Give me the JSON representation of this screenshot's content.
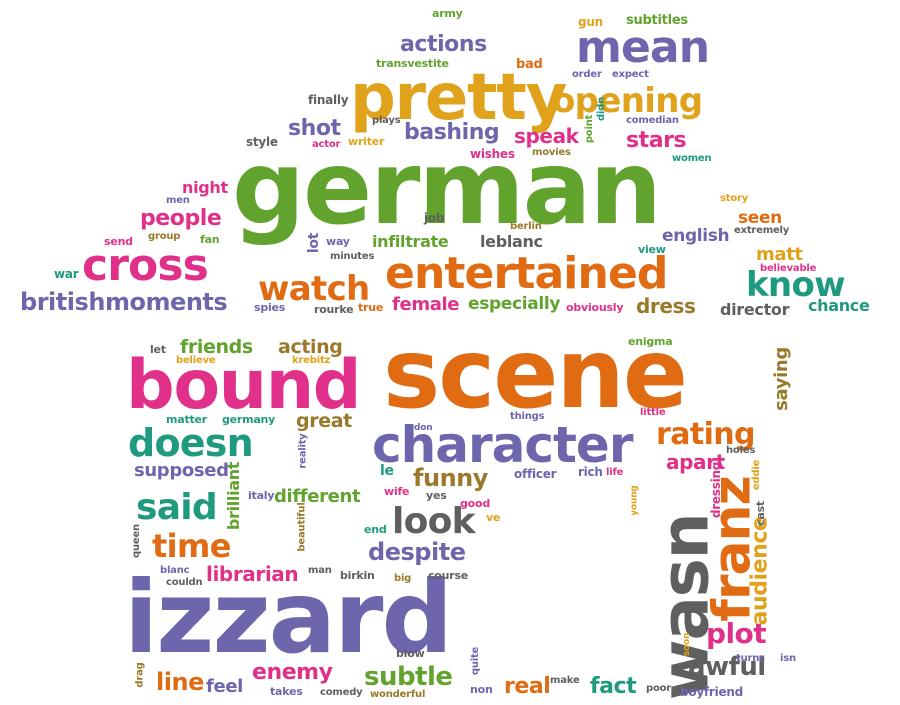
{
  "palette": {
    "green": "#62a32e",
    "orange": "#e06b12",
    "pink": "#e0308a",
    "purple": "#6e66ad",
    "gold": "#e0a21b",
    "gray": "#5f5f5f",
    "teal": "#1f9a7f",
    "olive": "#9a7a2a"
  },
  "words": [
    {
      "text": "german",
      "color": "green"
    },
    {
      "text": "scene",
      "color": "orange"
    },
    {
      "text": "izzard",
      "color": "purple"
    },
    {
      "text": "bound",
      "color": "pink"
    },
    {
      "text": "pretty",
      "color": "gold"
    },
    {
      "text": "character",
      "color": "purple"
    },
    {
      "text": "entertained",
      "color": "orange"
    },
    {
      "text": "wasn",
      "color": "gray"
    },
    {
      "text": "franz",
      "color": "orange"
    },
    {
      "text": "cross",
      "color": "pink"
    },
    {
      "text": "watch",
      "color": "orange"
    },
    {
      "text": "mean",
      "color": "purple"
    },
    {
      "text": "opening",
      "color": "gold"
    },
    {
      "text": "know",
      "color": "teal"
    },
    {
      "text": "doesn",
      "color": "teal"
    },
    {
      "text": "look",
      "color": "gray"
    },
    {
      "text": "said",
      "color": "teal"
    },
    {
      "text": "time",
      "color": "orange"
    },
    {
      "text": "rating",
      "color": "orange"
    },
    {
      "text": "britishmoments",
      "color": "purple"
    },
    {
      "text": "actions",
      "color": "purple"
    },
    {
      "text": "shot",
      "color": "purple"
    },
    {
      "text": "bashing",
      "color": "purple"
    },
    {
      "text": "speak",
      "color": "pink"
    },
    {
      "text": "stars",
      "color": "pink"
    },
    {
      "text": "people",
      "color": "pink"
    },
    {
      "text": "funny",
      "color": "olive"
    },
    {
      "text": "despite",
      "color": "purple"
    },
    {
      "text": "plot",
      "color": "pink"
    },
    {
      "text": "awful",
      "color": "gray"
    },
    {
      "text": "audience",
      "color": "gold"
    },
    {
      "text": "subtle",
      "color": "green"
    },
    {
      "text": "enemy",
      "color": "pink"
    },
    {
      "text": "line",
      "color": "orange"
    },
    {
      "text": "real",
      "color": "orange"
    },
    {
      "text": "fact",
      "color": "teal"
    },
    {
      "text": "librarian",
      "color": "pink"
    },
    {
      "text": "friends",
      "color": "green"
    },
    {
      "text": "acting",
      "color": "olive"
    },
    {
      "text": "great",
      "color": "olive"
    },
    {
      "text": "dress",
      "color": "olive"
    },
    {
      "text": "female",
      "color": "pink"
    },
    {
      "text": "especially",
      "color": "green"
    },
    {
      "text": "different",
      "color": "green"
    },
    {
      "text": "supposed",
      "color": "purple"
    },
    {
      "text": "apart",
      "color": "pink"
    },
    {
      "text": "saying",
      "color": "olive"
    },
    {
      "text": "director",
      "color": "gray"
    },
    {
      "text": "chance",
      "color": "teal"
    },
    {
      "text": "english",
      "color": "purple"
    },
    {
      "text": "matt",
      "color": "gold"
    },
    {
      "text": "seen",
      "color": "orange"
    },
    {
      "text": "infiltrate",
      "color": "green"
    },
    {
      "text": "leblanc",
      "color": "gray"
    },
    {
      "text": "night",
      "color": "pink"
    },
    {
      "text": "feel",
      "color": "purple"
    },
    {
      "text": "brilliant",
      "color": "green"
    },
    {
      "text": "army",
      "color": "green"
    },
    {
      "text": "gun",
      "color": "gold"
    },
    {
      "text": "subtitles",
      "color": "green"
    },
    {
      "text": "transvestite",
      "color": "green"
    },
    {
      "text": "bad",
      "color": "orange"
    },
    {
      "text": "order",
      "color": "purple"
    },
    {
      "text": "expect",
      "color": "purple"
    },
    {
      "text": "finally",
      "color": "gray"
    },
    {
      "text": "plays",
      "color": "gray"
    },
    {
      "text": "writer",
      "color": "gold"
    },
    {
      "text": "actor",
      "color": "pink"
    },
    {
      "text": "style",
      "color": "gray"
    },
    {
      "text": "wishes",
      "color": "pink"
    },
    {
      "text": "movies",
      "color": "olive"
    },
    {
      "text": "didn",
      "color": "teal"
    },
    {
      "text": "point",
      "color": "green"
    },
    {
      "text": "comedian",
      "color": "purple"
    },
    {
      "text": "women",
      "color": "teal"
    },
    {
      "text": "extremely",
      "color": "gray"
    },
    {
      "text": "story",
      "color": "gold"
    },
    {
      "text": "men",
      "color": "purple"
    },
    {
      "text": "job",
      "color": "gray"
    },
    {
      "text": "berlin",
      "color": "olive"
    },
    {
      "text": "fan",
      "color": "green"
    },
    {
      "text": "send",
      "color": "pink"
    },
    {
      "text": "group",
      "color": "olive"
    },
    {
      "text": "lot",
      "color": "purple"
    },
    {
      "text": "way",
      "color": "purple"
    },
    {
      "text": "minutes",
      "color": "gray"
    },
    {
      "text": "view",
      "color": "teal"
    },
    {
      "text": "believable",
      "color": "pink"
    },
    {
      "text": "war",
      "color": "teal"
    },
    {
      "text": "spies",
      "color": "purple"
    },
    {
      "text": "rourke",
      "color": "gray"
    },
    {
      "text": "true",
      "color": "orange"
    },
    {
      "text": "obviously",
      "color": "pink"
    },
    {
      "text": "enigma",
      "color": "green"
    },
    {
      "text": "let",
      "color": "gray"
    },
    {
      "text": "believe",
      "color": "gold"
    },
    {
      "text": "krebitz",
      "color": "gold"
    },
    {
      "text": "matter",
      "color": "teal"
    },
    {
      "text": "germany",
      "color": "teal"
    },
    {
      "text": "reality",
      "color": "purple"
    },
    {
      "text": "don",
      "color": "purple"
    },
    {
      "text": "things",
      "color": "purple"
    },
    {
      "text": "little",
      "color": "pink"
    },
    {
      "text": "holes",
      "color": "gray"
    },
    {
      "text": "eddie",
      "color": "gold"
    },
    {
      "text": "le",
      "color": "teal"
    },
    {
      "text": "officer",
      "color": "purple"
    },
    {
      "text": "rich",
      "color": "purple"
    },
    {
      "text": "life",
      "color": "pink"
    },
    {
      "text": "wife",
      "color": "pink"
    },
    {
      "text": "italy",
      "color": "purple"
    },
    {
      "text": "yes",
      "color": "gray"
    },
    {
      "text": "good",
      "color": "pink"
    },
    {
      "text": "ve",
      "color": "gold"
    },
    {
      "text": "young",
      "color": "gold"
    },
    {
      "text": "dressing",
      "color": "pink"
    },
    {
      "text": "cast",
      "color": "gray"
    },
    {
      "text": "beautiful",
      "color": "olive"
    },
    {
      "text": "end",
      "color": "teal"
    },
    {
      "text": "queen",
      "color": "gray"
    },
    {
      "text": "blanc",
      "color": "purple"
    },
    {
      "text": "couldn",
      "color": "gray"
    },
    {
      "text": "man",
      "color": "gray"
    },
    {
      "text": "birkin",
      "color": "gray"
    },
    {
      "text": "big",
      "color": "olive"
    },
    {
      "text": "course",
      "color": "gray"
    },
    {
      "text": "soon",
      "color": "gold"
    },
    {
      "text": "turns",
      "color": "purple"
    },
    {
      "text": "isn",
      "color": "purple"
    },
    {
      "text": "blow",
      "color": "gray"
    },
    {
      "text": "quite",
      "color": "purple"
    },
    {
      "text": "non",
      "color": "purple"
    },
    {
      "text": "make",
      "color": "gray"
    },
    {
      "text": "drag",
      "color": "olive"
    },
    {
      "text": "takes",
      "color": "purple"
    },
    {
      "text": "comedy",
      "color": "gray"
    },
    {
      "text": "wonderful",
      "color": "olive"
    },
    {
      "text": "poor",
      "color": "gray"
    },
    {
      "text": "boyfriend",
      "color": "purple"
    }
  ]
}
